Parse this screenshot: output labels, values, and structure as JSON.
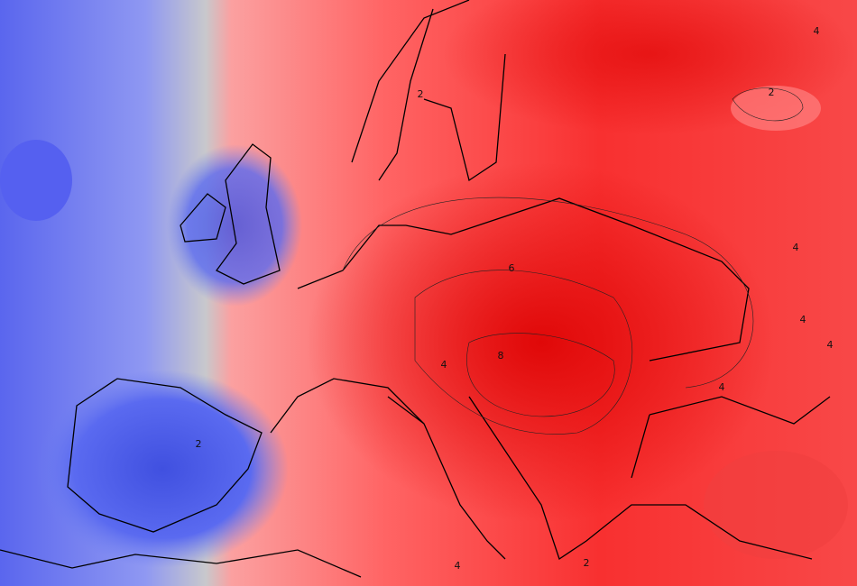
{
  "map": {
    "contour_labels": [
      {
        "text": "4",
        "pos": "top-right"
      },
      {
        "text": "2",
        "pos": "scandinavia"
      },
      {
        "text": "2",
        "pos": "russia-north"
      },
      {
        "text": "4",
        "pos": "russia-east"
      },
      {
        "text": "6",
        "pos": "poland"
      },
      {
        "text": "4",
        "pos": "ukraine-east"
      },
      {
        "text": "4",
        "pos": "caucasus"
      },
      {
        "text": "8",
        "pos": "hungary"
      },
      {
        "text": "4",
        "pos": "alps"
      },
      {
        "text": "4",
        "pos": "black-sea"
      },
      {
        "text": "2",
        "pos": "spain"
      },
      {
        "text": "4",
        "pos": "sicily"
      },
      {
        "text": "2",
        "pos": "greece"
      }
    ]
  }
}
